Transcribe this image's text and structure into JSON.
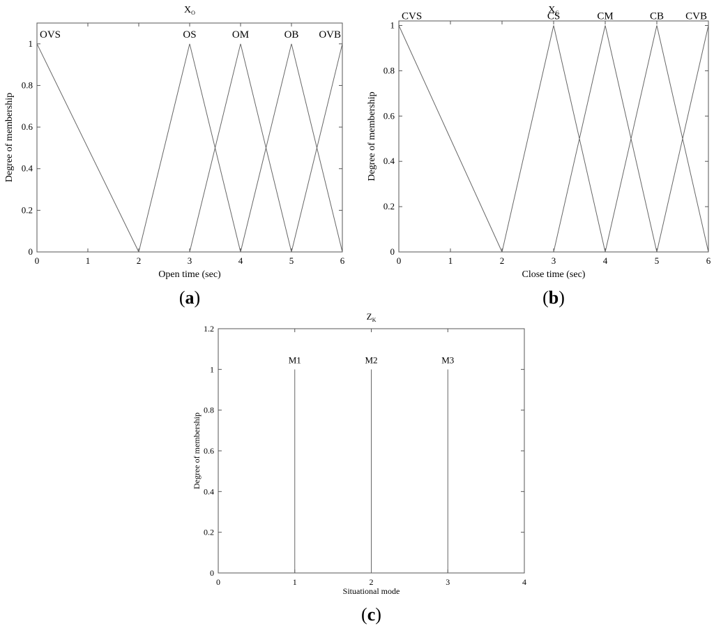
{
  "chart_data": [
    {
      "type": "line",
      "panel_label": "a",
      "title": "X",
      "title_sub": "O",
      "xlabel": "Open time (sec)",
      "ylabel": "Degree of membership",
      "xlim": [
        0,
        6
      ],
      "ylim": [
        0,
        1.1
      ],
      "xticks": [
        0,
        1,
        2,
        3,
        4,
        5,
        6
      ],
      "yticks": [
        0,
        0.2,
        0.4,
        0.6,
        0.8,
        1
      ],
      "ytick_labels": [
        "0",
        "0.2",
        "0.4",
        "0.6",
        "0.8",
        "1"
      ],
      "grid": false,
      "series": [
        {
          "name": "OVS",
          "x": [
            0,
            2
          ],
          "y": [
            1,
            0
          ]
        },
        {
          "name": "OS",
          "x": [
            2,
            3,
            4
          ],
          "y": [
            0,
            1,
            0
          ]
        },
        {
          "name": "OM",
          "x": [
            3,
            4,
            5
          ],
          "y": [
            0,
            1,
            0
          ]
        },
        {
          "name": "OB",
          "x": [
            4,
            5,
            6
          ],
          "y": [
            0,
            1,
            0
          ]
        },
        {
          "name": "OVB",
          "x": [
            5,
            6
          ],
          "y": [
            0,
            1
          ]
        }
      ]
    },
    {
      "type": "line",
      "panel_label": "b",
      "title": "X",
      "title_sub": "C",
      "xlabel": "Close time (sec)",
      "ylabel": "Degree of membership",
      "xlim": [
        0,
        6
      ],
      "ylim": [
        0,
        1.02
      ],
      "xticks": [
        0,
        1,
        2,
        3,
        4,
        5,
        6
      ],
      "yticks": [
        0,
        0.2,
        0.4,
        0.6,
        0.8,
        1
      ],
      "ytick_labels": [
        "0",
        "0.2",
        "0.4",
        "0.6",
        "0.8",
        "1"
      ],
      "grid": false,
      "series": [
        {
          "name": "CVS",
          "x": [
            0,
            2
          ],
          "y": [
            1,
            0
          ]
        },
        {
          "name": "CS",
          "x": [
            2,
            3,
            4
          ],
          "y": [
            0,
            1,
            0
          ]
        },
        {
          "name": "CM",
          "x": [
            3,
            4,
            5
          ],
          "y": [
            0,
            1,
            0
          ]
        },
        {
          "name": "CB",
          "x": [
            4,
            5,
            6
          ],
          "y": [
            0,
            1,
            0
          ]
        },
        {
          "name": "CVB",
          "x": [
            5,
            6
          ],
          "y": [
            0,
            1
          ]
        }
      ]
    },
    {
      "type": "line",
      "panel_label": "c",
      "title": "Z",
      "title_sub": "K",
      "xlabel": "Situational mode",
      "ylabel": "Degree of membership",
      "xlim": [
        0,
        4
      ],
      "ylim": [
        0,
        1.2
      ],
      "xticks": [
        0,
        1,
        2,
        3,
        4
      ],
      "yticks": [
        0,
        0.2,
        0.4,
        0.6,
        0.8,
        1,
        1.2
      ],
      "ytick_labels": [
        "0",
        "0.2",
        "0.4",
        "0.6",
        "0.8",
        "1",
        "1.2"
      ],
      "grid": false,
      "series": [
        {
          "name": "M1",
          "x": [
            1,
            1
          ],
          "y": [
            0,
            1
          ]
        },
        {
          "name": "M2",
          "x": [
            2,
            2
          ],
          "y": [
            0,
            1
          ]
        },
        {
          "name": "M3",
          "x": [
            3,
            3
          ],
          "y": [
            0,
            1
          ]
        }
      ]
    }
  ]
}
